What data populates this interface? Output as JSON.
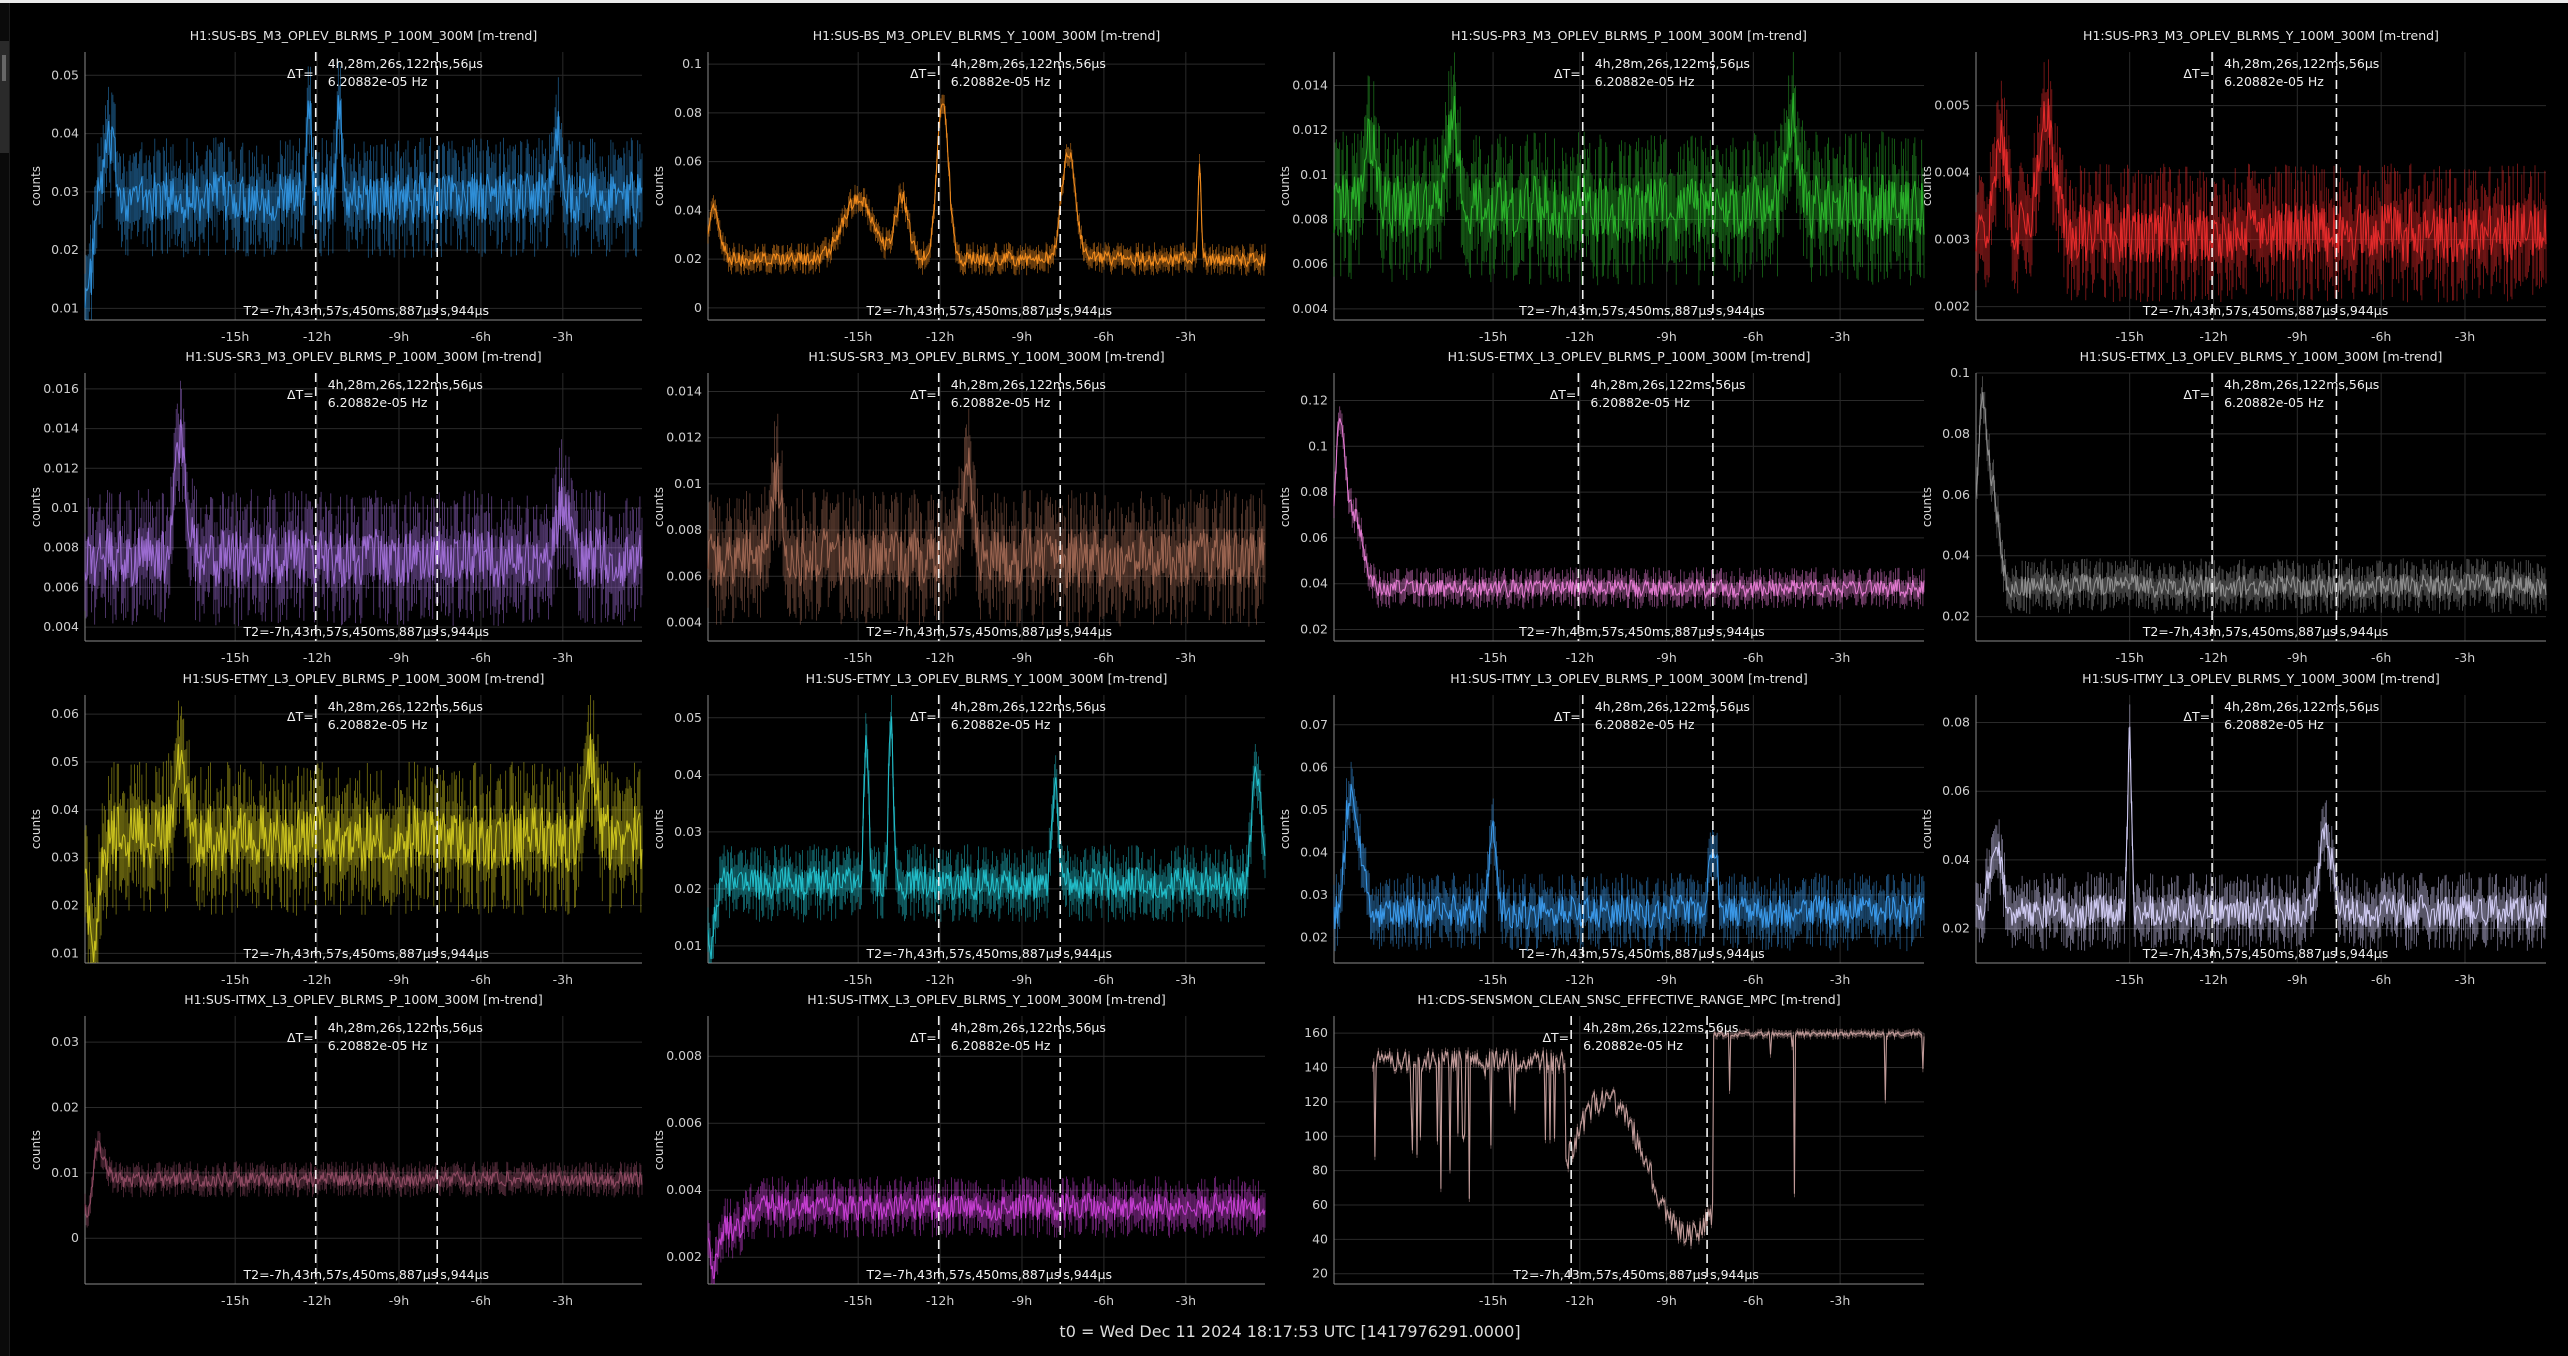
{
  "footer": "t0 = Wed Dec 11 2024 18:17:53 UTC [1417976291.0000]",
  "cursor": {
    "delta_label": "ΔT=",
    "delta_value": "4h,28m,26s,122ms,56µs",
    "freq": "6.20882e-05 Hz",
    "t2_prefix": "T2=-7h,43m,57s,450ms,887µs",
    "t2_suffix": "s,944µs"
  },
  "chart_data": [
    {
      "type": "line",
      "title": "H1:SUS-BS_M3_OPLEV_BLRMS_P_100M_300M [m-trend]",
      "ylabel": "counts",
      "color": "#2f8fd8",
      "yticks": [
        "0.05",
        "0.04",
        "0.03",
        "0.02",
        "0.01"
      ],
      "ylim": [
        0.008,
        0.054
      ],
      "xticks": [
        "-15h",
        "-12h",
        "-9h",
        "-6h",
        "-3h"
      ],
      "xlim": [
        -20.5,
        -0.1
      ],
      "cursors": [
        -12.05,
        -7.6
      ],
      "base": 0.029,
      "noise": 0.0045,
      "features": [
        {
          "x": -20.4,
          "y": 0.012,
          "w": 0.25
        },
        {
          "x": -19.6,
          "y": 0.038,
          "w": 0.3
        },
        {
          "x": -12.3,
          "y": 0.047,
          "w": 0.12
        },
        {
          "x": -11.2,
          "y": 0.047,
          "w": 0.12
        },
        {
          "x": -3.2,
          "y": 0.04,
          "w": 0.2
        }
      ]
    },
    {
      "type": "line",
      "title": "H1:SUS-BS_M3_OPLEV_BLRMS_Y_100M_300M [m-trend]",
      "ylabel": "counts",
      "color": "#f28c1e",
      "yticks": [
        "0.1",
        "0.08",
        "0.06",
        "0.04",
        "0.02",
        "0"
      ],
      "ylim": [
        -0.005,
        0.105
      ],
      "xticks": [
        "-15h",
        "-12h",
        "-9h",
        "-6h",
        "-3h"
      ],
      "xlim": [
        -20.5,
        -0.1
      ],
      "cursors": [
        -12.05,
        -7.6
      ],
      "base": 0.02,
      "noise": 0.003,
      "features": [
        {
          "x": -20.3,
          "y": 0.04,
          "w": 0.3
        },
        {
          "x": -15.0,
          "y": 0.045,
          "w": 0.8
        },
        {
          "x": -13.4,
          "y": 0.045,
          "w": 0.35
        },
        {
          "x": -11.9,
          "y": 0.085,
          "w": 0.3
        },
        {
          "x": -7.3,
          "y": 0.065,
          "w": 0.35
        },
        {
          "x": -2.5,
          "y": 0.06,
          "w": 0.08
        }
      ]
    },
    {
      "type": "line",
      "title": "H1:SUS-PR3_M3_OPLEV_BLRMS_P_100M_300M [m-trend]",
      "ylabel": "counts",
      "color": "#2ab02a",
      "yticks": [
        "0.014",
        "0.012",
        "0.01",
        "0.008",
        "0.006",
        "0.004"
      ],
      "ylim": [
        0.0035,
        0.0155
      ],
      "xticks": [
        "-15h",
        "-12h",
        "-9h",
        "-6h",
        "-3h"
      ],
      "xlim": [
        -20.5,
        -0.1
      ],
      "cursors": [
        -11.9,
        -7.4
      ],
      "base": 0.0085,
      "noise": 0.0015,
      "features": [
        {
          "x": -19.2,
          "y": 0.0115,
          "w": 0.3
        },
        {
          "x": -16.4,
          "y": 0.0125,
          "w": 0.3
        },
        {
          "x": -4.7,
          "y": 0.0125,
          "w": 0.3
        }
      ]
    },
    {
      "type": "line",
      "title": "H1:SUS-PR3_M3_OPLEV_BLRMS_Y_100M_300M [m-trend]",
      "ylabel": "counts",
      "color": "#e22a2a",
      "yticks": [
        "0.005",
        "0.004",
        "0.003",
        "0.002"
      ],
      "ylim": [
        0.0018,
        0.0058
      ],
      "xticks": [
        "-15h",
        "-12h",
        "-9h",
        "-6h",
        "-3h"
      ],
      "xlim": [
        -20.5,
        -0.1
      ],
      "cursors": [
        -12.05,
        -7.6
      ],
      "base": 0.0031,
      "noise": 0.00045,
      "features": [
        {
          "x": -19.6,
          "y": 0.0045,
          "w": 0.3
        },
        {
          "x": -18.0,
          "y": 0.0048,
          "w": 0.4
        }
      ]
    },
    {
      "type": "line",
      "title": "H1:SUS-SR3_M3_OPLEV_BLRMS_P_100M_300M [m-trend]",
      "ylabel": "counts",
      "color": "#9b6bd0",
      "yticks": [
        "0.016",
        "0.014",
        "0.012",
        "0.01",
        "0.008",
        "0.006",
        "0.004"
      ],
      "ylim": [
        0.0033,
        0.0168
      ],
      "xticks": [
        "-15h",
        "-12h",
        "-9h",
        "-6h",
        "-3h"
      ],
      "xlim": [
        -20.5,
        -0.1
      ],
      "cursors": [
        -12.05,
        -7.6
      ],
      "base": 0.0075,
      "noise": 0.0015,
      "features": [
        {
          "x": -17.0,
          "y": 0.013,
          "w": 0.3
        },
        {
          "x": -3.0,
          "y": 0.0105,
          "w": 0.3
        }
      ]
    },
    {
      "type": "line",
      "title": "H1:SUS-SR3_M3_OPLEV_BLRMS_Y_100M_300M [m-trend]",
      "ylabel": "counts",
      "color": "#9a6450",
      "yticks": [
        "0.014",
        "0.012",
        "0.01",
        "0.008",
        "0.006",
        "0.004"
      ],
      "ylim": [
        0.0032,
        0.0148
      ],
      "xticks": [
        "-15h",
        "-12h",
        "-9h",
        "-6h",
        "-3h"
      ],
      "xlim": [
        -20.5,
        -0.1
      ],
      "cursors": [
        -12.05,
        -7.6
      ],
      "base": 0.0068,
      "noise": 0.0013,
      "features": [
        {
          "x": -18.0,
          "y": 0.0102,
          "w": 0.3
        },
        {
          "x": -11.0,
          "y": 0.0105,
          "w": 0.3
        }
      ]
    },
    {
      "type": "line",
      "title": "H1:SUS-ETMX_L3_OPLEV_BLRMS_P_100M_300M [m-trend]",
      "ylabel": "counts",
      "color": "#e27ad0",
      "yticks": [
        "0.12",
        "0.1",
        "0.08",
        "0.06",
        "0.04",
        "0.02"
      ],
      "ylim": [
        0.015,
        0.132
      ],
      "xticks": [
        "-15h",
        "-12h",
        "-9h",
        "-6h",
        "-3h"
      ],
      "xlim": [
        -20.5,
        -0.1
      ],
      "cursors": [
        -12.05,
        -7.4
      ],
      "base": 0.038,
      "noise": 0.004,
      "features": [
        {
          "x": -20.3,
          "y": 0.105,
          "w": 0.25
        },
        {
          "x": -19.8,
          "y": 0.07,
          "w": 0.4
        }
      ]
    },
    {
      "type": "line",
      "title": "H1:SUS-ETMX_L3_OPLEV_BLRMS_Y_100M_300M [m-trend]",
      "ylabel": "counts",
      "color": "#8e8e8e",
      "yticks": [
        "0.1",
        "0.08",
        "0.06",
        "0.04",
        "0.02"
      ],
      "ylim": [
        0.012,
        0.1
      ],
      "xticks": [
        "-15h",
        "-12h",
        "-9h",
        "-6h",
        "-3h"
      ],
      "xlim": [
        -20.5,
        -0.1
      ],
      "cursors": [
        -12.05,
        -7.6
      ],
      "base": 0.03,
      "noise": 0.004,
      "features": [
        {
          "x": -20.3,
          "y": 0.085,
          "w": 0.25
        },
        {
          "x": -19.9,
          "y": 0.06,
          "w": 0.3
        }
      ]
    },
    {
      "type": "line",
      "title": "H1:SUS-ETMY_L3_OPLEV_BLRMS_P_100M_300M [m-trend]",
      "ylabel": "counts",
      "color": "#c8c01e",
      "yticks": [
        "0.06",
        "0.05",
        "0.04",
        "0.03",
        "0.02",
        "0.01"
      ],
      "ylim": [
        0.008,
        0.064
      ],
      "xticks": [
        "-15h",
        "-12h",
        "-9h",
        "-6h",
        "-3h"
      ],
      "xlim": [
        -20.5,
        -0.1
      ],
      "cursors": [
        -12.05,
        -7.6
      ],
      "base": 0.034,
      "noise": 0.007,
      "features": [
        {
          "x": -20.2,
          "y": 0.014,
          "w": 0.3
        },
        {
          "x": -17.0,
          "y": 0.052,
          "w": 0.3
        },
        {
          "x": -2.0,
          "y": 0.05,
          "w": 0.3
        }
      ]
    },
    {
      "type": "line",
      "title": "H1:SUS-ETMY_L3_OPLEV_BLRMS_Y_100M_300M [m-trend]",
      "ylabel": "counts",
      "color": "#22bcc8",
      "yticks": [
        "0.05",
        "0.04",
        "0.03",
        "0.02",
        "0.01"
      ],
      "ylim": [
        0.007,
        0.054
      ],
      "xticks": [
        "-15h",
        "-12h",
        "-9h",
        "-6h",
        "-3h"
      ],
      "xlim": [
        -20.5,
        -0.1
      ],
      "cursors": [
        -12.05,
        -7.6
      ],
      "base": 0.021,
      "noise": 0.003,
      "features": [
        {
          "x": -20.4,
          "y": 0.01,
          "w": 0.2
        },
        {
          "x": -14.7,
          "y": 0.046,
          "w": 0.12
        },
        {
          "x": -13.8,
          "y": 0.05,
          "w": 0.12
        },
        {
          "x": -7.8,
          "y": 0.04,
          "w": 0.15
        },
        {
          "x": -0.4,
          "y": 0.04,
          "w": 0.25
        }
      ]
    },
    {
      "type": "line",
      "title": "H1:SUS-ITMY_L3_OPLEV_BLRMS_P_100M_300M [m-trend]",
      "ylabel": "counts",
      "color": "#3a98e8",
      "yticks": [
        "0.07",
        "0.06",
        "0.05",
        "0.04",
        "0.03",
        "0.02"
      ],
      "ylim": [
        0.014,
        0.077
      ],
      "xticks": [
        "-15h",
        "-12h",
        "-9h",
        "-6h",
        "-3h"
      ],
      "xlim": [
        -20.5,
        -0.1
      ],
      "cursors": [
        -11.9,
        -7.4
      ],
      "base": 0.026,
      "noise": 0.004,
      "features": [
        {
          "x": -20.3,
          "y": 0.018,
          "w": 0.2
        },
        {
          "x": -19.9,
          "y": 0.055,
          "w": 0.4
        },
        {
          "x": -15.0,
          "y": 0.045,
          "w": 0.2
        },
        {
          "x": -7.4,
          "y": 0.043,
          "w": 0.2
        }
      ]
    },
    {
      "type": "line",
      "title": "H1:SUS-ITMY_L3_OPLEV_BLRMS_Y_100M_300M [m-trend]",
      "ylabel": "counts",
      "color": "#cfcaf2",
      "yticks": [
        "0.08",
        "0.06",
        "0.04",
        "0.02"
      ],
      "ylim": [
        0.01,
        0.088
      ],
      "xticks": [
        "-15h",
        "-12h",
        "-9h",
        "-6h",
        "-3h"
      ],
      "xlim": [
        -20.5,
        -0.1
      ],
      "cursors": [
        -12.05,
        -7.6
      ],
      "base": 0.025,
      "noise": 0.005,
      "features": [
        {
          "x": -15.0,
          "y": 0.075,
          "w": 0.1
        },
        {
          "x": -19.8,
          "y": 0.045,
          "w": 0.3
        },
        {
          "x": -8.0,
          "y": 0.05,
          "w": 0.3
        }
      ]
    },
    {
      "type": "line",
      "title": "H1:SUS-ITMX_L3_OPLEV_BLRMS_P_100M_300M [m-trend]",
      "ylabel": "counts",
      "color": "#8e4a62",
      "yticks": [
        "0.03",
        "0.02",
        "0.01",
        "0"
      ],
      "ylim": [
        -0.007,
        0.034
      ],
      "xticks": [
        "-15h",
        "-12h",
        "-9h",
        "-6h",
        "-3h"
      ],
      "xlim": [
        -20.5,
        -0.1
      ],
      "cursors": [
        -12.05,
        -7.6
      ],
      "base": 0.009,
      "noise": 0.0012,
      "features": [
        {
          "x": -20.4,
          "y": 0.003,
          "w": 0.2
        },
        {
          "x": -20.0,
          "y": 0.014,
          "w": 0.3
        }
      ]
    },
    {
      "type": "line",
      "title": "H1:SUS-ITMX_L3_OPLEV_BLRMS_Y_100M_300M [m-trend]",
      "ylabel": "counts",
      "color": "#c43ed0",
      "yticks": [
        "0.008",
        "0.006",
        "0.004",
        "0.002"
      ],
      "ylim": [
        0.0012,
        0.0092
      ],
      "xticks": [
        "-15h",
        "-12h",
        "-9h",
        "-6h",
        "-3h"
      ],
      "xlim": [
        -20.5,
        -0.1
      ],
      "cursors": [
        -12.05,
        -7.6
      ],
      "base": 0.0035,
      "noise": 0.0004,
      "features": [
        {
          "x": -20.3,
          "y": 0.0017,
          "w": 0.3
        },
        {
          "x": -19.5,
          "y": 0.0028,
          "w": 0.5
        }
      ]
    },
    {
      "type": "line",
      "title": "H1:CDS-SENSMON_CLEAN_SNSC_EFFECTIVE_RANGE_MPC [m-trend]",
      "ylabel": "",
      "color": "#c09a98",
      "yticks": [
        "160",
        "140",
        "120",
        "100",
        "80",
        "60",
        "40",
        "20"
      ],
      "ylim": [
        14,
        170
      ],
      "xticks": [
        "-15h",
        "-12h",
        "-9h",
        "-6h",
        "-3h"
      ],
      "xlim": [
        -20.5,
        -0.1
      ],
      "cursors": [
        -12.3,
        -7.6
      ],
      "base": 158,
      "noise": 1.5,
      "features": []
    }
  ]
}
